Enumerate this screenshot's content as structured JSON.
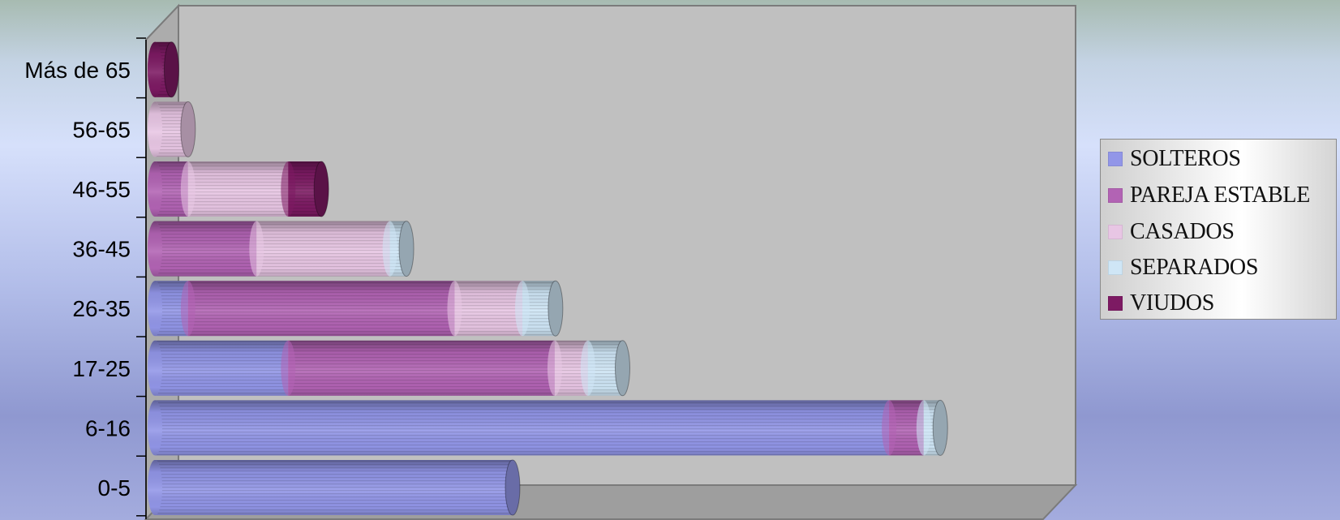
{
  "chart_data": {
    "type": "bar",
    "orientation": "horizontal",
    "stacked": true,
    "style": "3d-cylinder",
    "categories": [
      "0-5",
      "6-16",
      "17-25",
      "26-35",
      "36-45",
      "46-55",
      "56-65",
      "Más de 65"
    ],
    "series": [
      {
        "name": "SOLTEROS",
        "color": "#9296e8",
        "values": [
          47.5,
          97.5,
          17.7,
          4.4,
          0,
          0,
          0,
          0
        ]
      },
      {
        "name": "PAREJA ESTABLE",
        "color": "#b263b4",
        "values": [
          0,
          4.6,
          35.4,
          35.4,
          13.5,
          4.4,
          0,
          0
        ]
      },
      {
        "name": "CASADOS",
        "color": "#e8c6e4",
        "values": [
          0,
          0,
          4.4,
          9.0,
          17.7,
          13.3,
          4.4,
          0
        ]
      },
      {
        "name": "SEPARADOS",
        "color": "#cfe6f6",
        "values": [
          0,
          2.2,
          4.6,
          4.4,
          2.2,
          0,
          0,
          0
        ]
      },
      {
        "name": "VIUDOS",
        "color": "#7d1a63",
        "values": [
          0,
          0,
          0,
          0,
          0,
          4.4,
          0,
          2.2
        ]
      }
    ],
    "xlim": [
      0,
      113
    ],
    "grid": false,
    "legend_position": "right"
  },
  "legend_title": ""
}
